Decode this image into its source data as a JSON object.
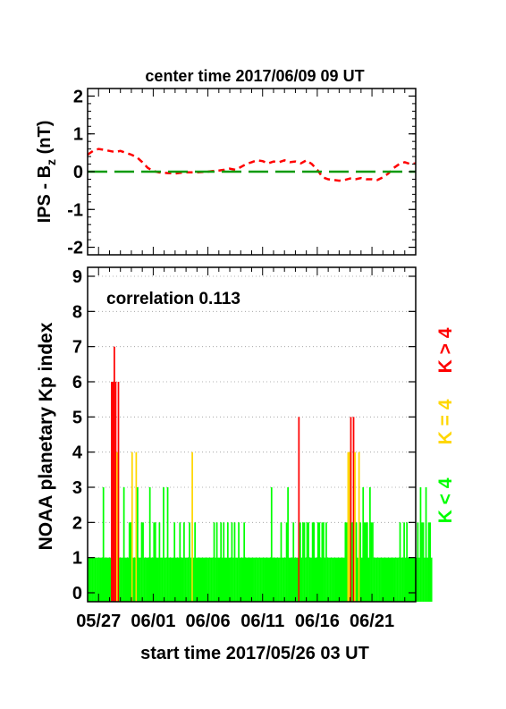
{
  "chart_data": [
    {
      "type": "line",
      "title": "center time 2017/06/09 09 UT",
      "ylabel_main": "IPS - B",
      "ylabel_sub": "z",
      "ylabel_unit": " (nT)",
      "ylim": [
        -2.2,
        2.2
      ],
      "yticks": [
        2,
        1,
        0,
        -1,
        -2
      ],
      "ytick_labels": [
        "2",
        "1",
        "0",
        "-1",
        "-2"
      ],
      "xlim_days": [
        0,
        30
      ],
      "series": [
        {
          "color": "#ff0000",
          "style": "dashed",
          "x": [
            0.0,
            0.5,
            1.0,
            1.5,
            2.0,
            2.5,
            3.0,
            3.5,
            4.0,
            4.5,
            5.0,
            5.5,
            6.0,
            6.5,
            7.0,
            7.5,
            8.0,
            8.5,
            9.0,
            9.5,
            10.0,
            10.5,
            11.0,
            11.5,
            12.0,
            12.5,
            13.0,
            13.5,
            14.0,
            14.5,
            15.0,
            15.5,
            16.0,
            16.5,
            17.0,
            17.5,
            18.0,
            18.5,
            19.0,
            19.5,
            20.0,
            20.5,
            21.0,
            21.5,
            22.0,
            22.5,
            23.0,
            23.5,
            24.0,
            24.5,
            25.0,
            25.5,
            26.0,
            26.5,
            27.0,
            27.5,
            28.0,
            28.5,
            29.0,
            29.5,
            30.0
          ],
          "values": [
            0.45,
            0.55,
            0.6,
            0.58,
            0.55,
            0.52,
            0.55,
            0.5,
            0.45,
            0.38,
            0.25,
            0.1,
            0.02,
            -0.02,
            -0.03,
            -0.04,
            -0.05,
            -0.03,
            -0.02,
            -0.02,
            -0.02,
            -0.01,
            0.0,
            0.02,
            0.03,
            0.05,
            0.08,
            0.05,
            0.12,
            0.2,
            0.25,
            0.3,
            0.28,
            0.22,
            0.27,
            0.25,
            0.3,
            0.25,
            0.27,
            0.22,
            0.3,
            0.2,
            0.05,
            -0.15,
            -0.2,
            -0.22,
            -0.24,
            -0.22,
            -0.18,
            -0.2,
            -0.17,
            -0.2,
            -0.2,
            -0.22,
            -0.15,
            -0.05,
            0.1,
            0.2,
            0.25,
            0.2,
            0.22
          ]
        },
        {
          "color": "#0a9a0a",
          "style": "long-dash",
          "x": [
            0,
            30
          ],
          "values": [
            0,
            0
          ]
        }
      ]
    },
    {
      "type": "bar",
      "ylabel": "NOAA planetary Kp index",
      "ylim": [
        0,
        9
      ],
      "yticks": [
        0,
        1,
        2,
        3,
        4,
        5,
        6,
        7,
        8,
        9
      ],
      "ytick_labels": [
        "0",
        "1",
        "2",
        "3",
        "4",
        "5",
        "6",
        "7",
        "8",
        "9"
      ],
      "grid": "horizontal dotted",
      "xlabel": "start time 2017/05/26 03 UT",
      "xtick_labels": [
        "05/27",
        "06/01",
        "06/06",
        "06/11",
        "06/16",
        "06/21"
      ],
      "xtick_days": [
        1,
        6,
        11,
        16,
        21,
        26
      ],
      "xlim_days": [
        0,
        30
      ],
      "annotation": "correlation 0.113",
      "legend": [
        {
          "label": "K > 4",
          "color": "#ff0000"
        },
        {
          "label": "K = 4",
          "color": "#ffd700"
        },
        {
          "label": "K < 4",
          "color": "#00ff00"
        }
      ],
      "colors": {
        "low": "#00ff00",
        "mid": "#ffd700",
        "high": "#ff0000"
      },
      "kp_3hourly": [
        1,
        1,
        1,
        1,
        1,
        1,
        1,
        1,
        1,
        1,
        1,
        3,
        1,
        1,
        1,
        1,
        1,
        6,
        6,
        7,
        6,
        4,
        6,
        1,
        1,
        1,
        3,
        1,
        1,
        1,
        2,
        2,
        4,
        1,
        1,
        4,
        3,
        1,
        1,
        2,
        2,
        1,
        1,
        1,
        1,
        3,
        1,
        1,
        2,
        2,
        1,
        1,
        2,
        1,
        1,
        3,
        1,
        1,
        3,
        1,
        1,
        1,
        1,
        2,
        1,
        1,
        1,
        2,
        1,
        1,
        2,
        1,
        1,
        1,
        2,
        1,
        4,
        1,
        2,
        1,
        1,
        1,
        1,
        1,
        1,
        1,
        1,
        1,
        1,
        1,
        1,
        1,
        2,
        1,
        2,
        1,
        1,
        2,
        1,
        2,
        1,
        1,
        2,
        1,
        1,
        2,
        1,
        2,
        1,
        1,
        2,
        1,
        1,
        1,
        2,
        1,
        1,
        1,
        1,
        1,
        1,
        1,
        1,
        1,
        1,
        1,
        1,
        1,
        1,
        1,
        1,
        1,
        1,
        1,
        3,
        1,
        1,
        1,
        1,
        1,
        1,
        2,
        1,
        1,
        1,
        2,
        3,
        1,
        1,
        1,
        2,
        1,
        1,
        1,
        5,
        2,
        1,
        2,
        2,
        1,
        2,
        2,
        1,
        1,
        2,
        2,
        1,
        1,
        2,
        2,
        1,
        2,
        2,
        1,
        2,
        1,
        1,
        1,
        1,
        1,
        1,
        1,
        1,
        1,
        1,
        1,
        1,
        1,
        2,
        2,
        4,
        4,
        5,
        2,
        5,
        4,
        2,
        1,
        4,
        2,
        1,
        3,
        2,
        2,
        2,
        1,
        3,
        2,
        2,
        1,
        1,
        1,
        1,
        1,
        1,
        1,
        1,
        1,
        1,
        1,
        1,
        1,
        1,
        1,
        1,
        1,
        1,
        1,
        2,
        1,
        1,
        2,
        1,
        2,
        1,
        1,
        1,
        1,
        1,
        1,
        1,
        2,
        1,
        3,
        2,
        2,
        1,
        3,
        1,
        2,
        2,
        1
      ]
    }
  ]
}
